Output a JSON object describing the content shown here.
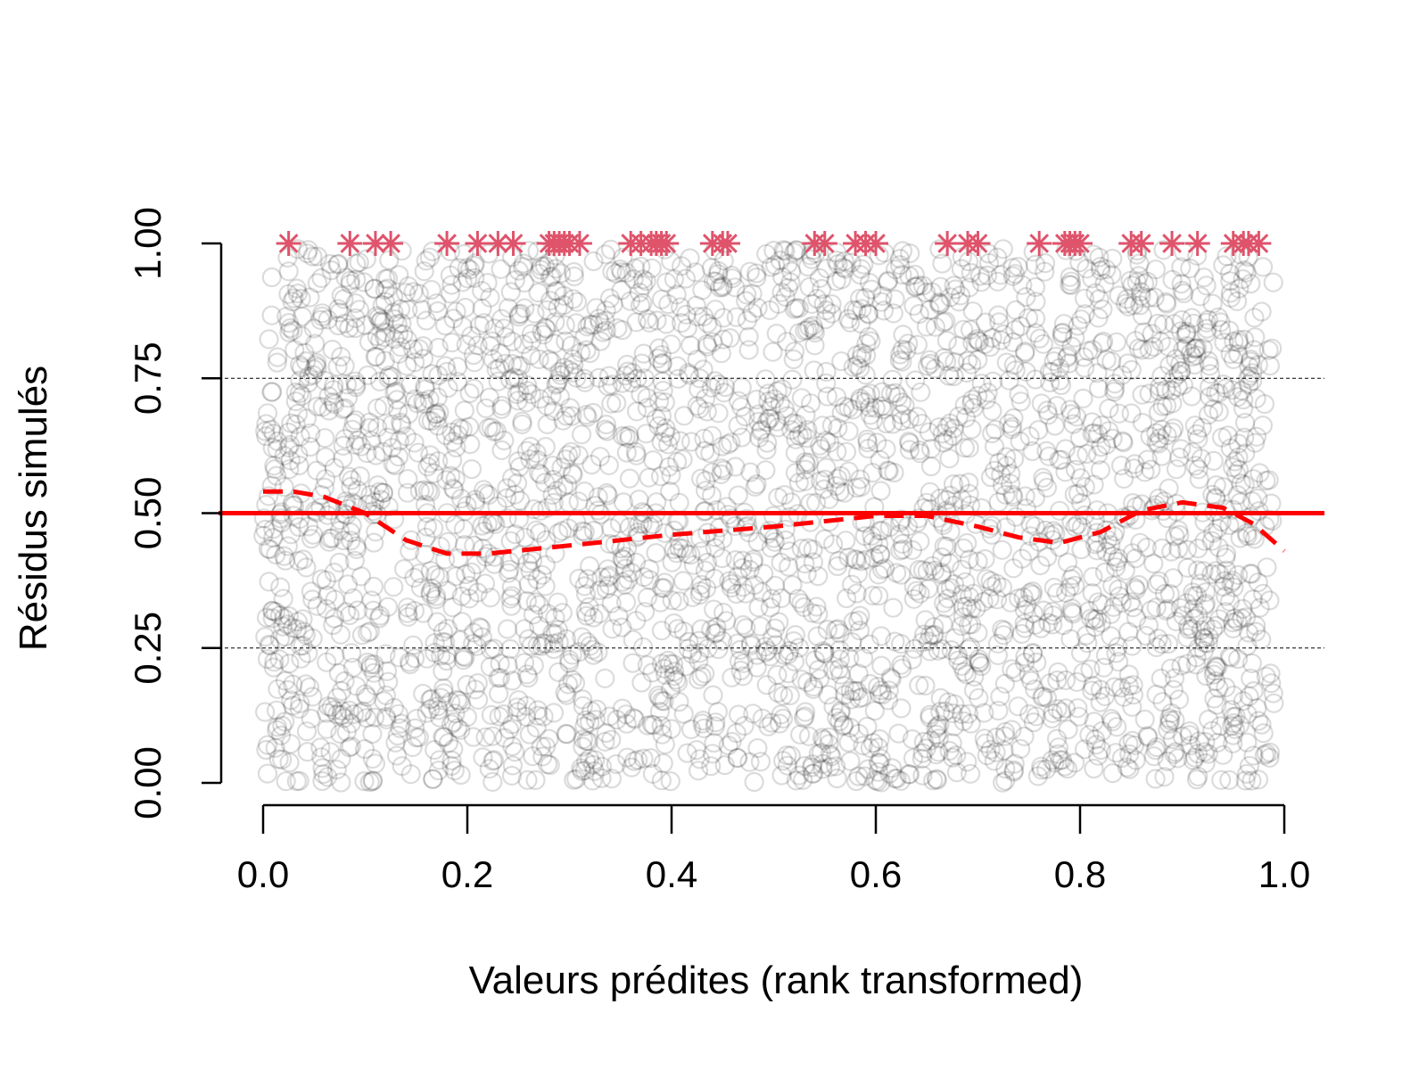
{
  "chart_data": {
    "type": "scatter",
    "title": "",
    "xlabel": "Valeurs prédites (rank transformed)",
    "ylabel": "Résidus simulés",
    "xlim": [
      0,
      1
    ],
    "ylim": [
      0,
      1
    ],
    "x_ticks": [
      "0.0",
      "0.2",
      "0.4",
      "0.6",
      "0.8",
      "1.0"
    ],
    "y_ticks": [
      "0.00",
      "0.25",
      "0.50",
      "0.75",
      "1.00"
    ],
    "grid": false,
    "legend": "none",
    "colors": {
      "points": "#000000",
      "outliers": "#DF536B",
      "reference": "#FF0000",
      "smooth": "#FF0000",
      "quantile_lines": "#000000"
    },
    "point_style": "open circles, semi-transparent grey",
    "approx_point_count": 3000,
    "reference_lines": [
      {
        "y": 0.25,
        "style": "dashed-thin"
      },
      {
        "y": 0.5,
        "style": "solid-thick"
      },
      {
        "y": 0.75,
        "style": "dashed-thin"
      }
    ],
    "smooth_curve": {
      "x": [
        0.0,
        0.03,
        0.06,
        0.1,
        0.14,
        0.18,
        0.22,
        0.3,
        0.4,
        0.5,
        0.6,
        0.65,
        0.7,
        0.74,
        0.78,
        0.82,
        0.86,
        0.9,
        0.94,
        0.97,
        1.0
      ],
      "y": [
        0.54,
        0.54,
        0.53,
        0.5,
        0.45,
        0.425,
        0.425,
        0.44,
        0.46,
        0.475,
        0.495,
        0.495,
        0.475,
        0.455,
        0.445,
        0.465,
        0.505,
        0.52,
        0.51,
        0.48,
        0.43
      ]
    },
    "outliers": {
      "x": [
        0.025,
        0.085,
        0.11,
        0.125,
        0.18,
        0.21,
        0.23,
        0.245,
        0.28,
        0.285,
        0.29,
        0.295,
        0.3,
        0.31,
        0.36,
        0.37,
        0.38,
        0.385,
        0.39,
        0.395,
        0.44,
        0.45,
        0.455,
        0.54,
        0.55,
        0.58,
        0.59,
        0.6,
        0.67,
        0.69,
        0.7,
        0.76,
        0.785,
        0.79,
        0.795,
        0.8,
        0.85,
        0.86,
        0.89,
        0.915,
        0.95,
        0.96,
        0.965,
        0.975
      ],
      "y": 1.0
    }
  }
}
